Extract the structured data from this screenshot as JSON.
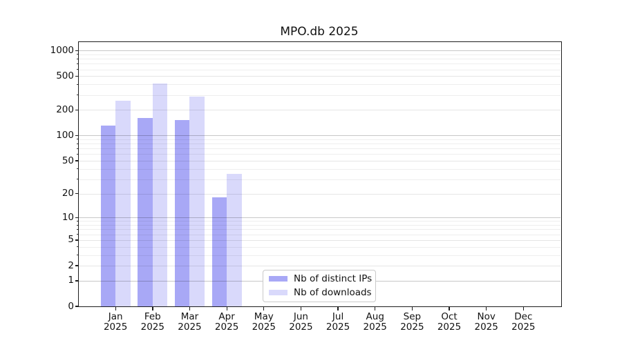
{
  "chart_data": {
    "type": "bar",
    "title": "MPO.db 2025",
    "categories": [
      "Jan",
      "Feb",
      "Mar",
      "Apr",
      "May",
      "Jun",
      "Jul",
      "Aug",
      "Sep",
      "Oct",
      "Nov",
      "Dec"
    ],
    "x_tick_line2": "2025",
    "series": [
      {
        "name": "Nb of distinct IPs",
        "color": "#a8a8f6",
        "values": [
          132,
          161,
          152,
          18,
          0,
          0,
          0,
          0,
          0,
          0,
          0,
          0
        ]
      },
      {
        "name": "Nb of downloads",
        "color": "#d9d9fb",
        "values": [
          257,
          410,
          288,
          35,
          0,
          0,
          0,
          0,
          0,
          0,
          0,
          0
        ]
      }
    ],
    "yscale": "log1p",
    "y_ticks": [
      0,
      1,
      2,
      5,
      10,
      20,
      50,
      100,
      200,
      500,
      1000
    ],
    "y_minor_gridlines": [
      3,
      4,
      6,
      7,
      8,
      9,
      30,
      40,
      60,
      70,
      80,
      90,
      300,
      400,
      600,
      700,
      800,
      900
    ],
    "ylim": [
      0,
      1258
    ],
    "xlabel": "",
    "ylabel": "",
    "grid": "both",
    "legend_position": "lower center"
  }
}
